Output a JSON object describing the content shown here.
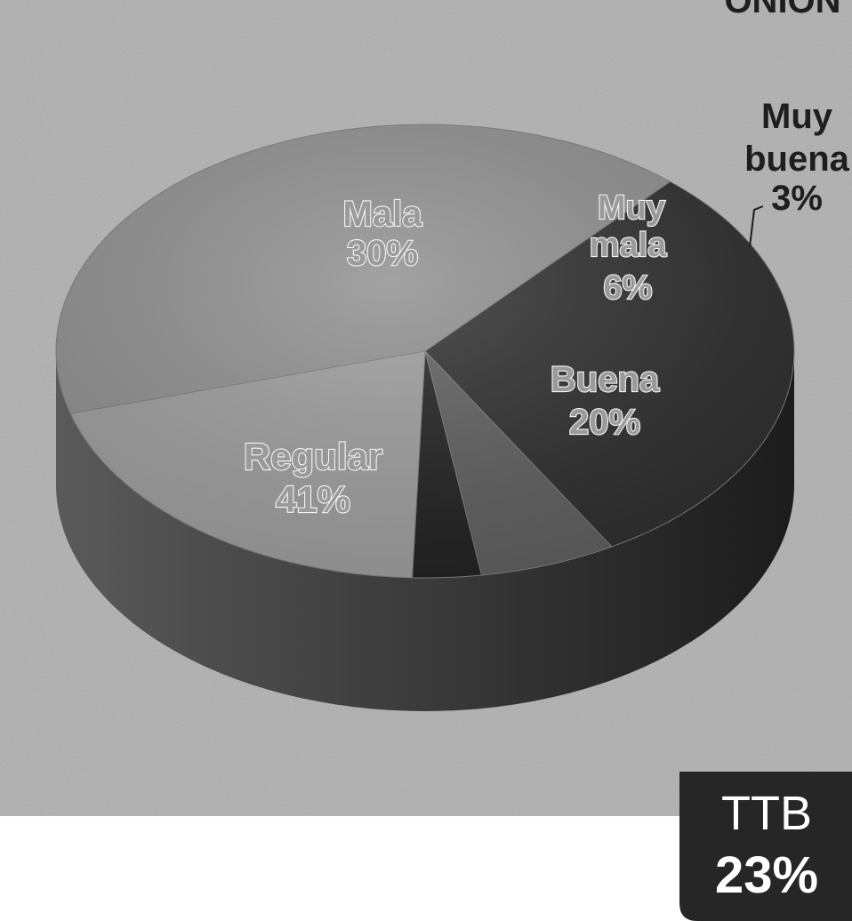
{
  "chart_data": {
    "type": "pie",
    "title": "",
    "slices": [
      {
        "label": "Regular",
        "value": 41,
        "display": "41%",
        "color": "#8e8e8e"
      },
      {
        "label": "Mala",
        "value": 30,
        "display": "30%",
        "color": "#2e2e2e"
      },
      {
        "label": "Muy mala",
        "value": 6,
        "display": "6%",
        "color": "#5e5e5e"
      },
      {
        "label": "Muy buena",
        "value": 3,
        "display": "3%",
        "color": "#222222"
      },
      {
        "label": "Buena",
        "value": 20,
        "display": "20%",
        "color": "#9c9c9c"
      }
    ],
    "labels": {
      "mala_name": "Mala",
      "mala_value": "30%",
      "muymala_line1": "Muy",
      "muymala_line2": "mala",
      "muymala_value": "6%",
      "muybuena_line1": "Muy",
      "muybuena_line2": "buena",
      "muybuena_value": "3%",
      "buena_name": "Buena",
      "buena_value": "20%",
      "regular_name": "Regular",
      "regular_value": "41%"
    },
    "corner_text": "ONION",
    "summary_box": {
      "title": "TTB",
      "value": "23%"
    }
  }
}
